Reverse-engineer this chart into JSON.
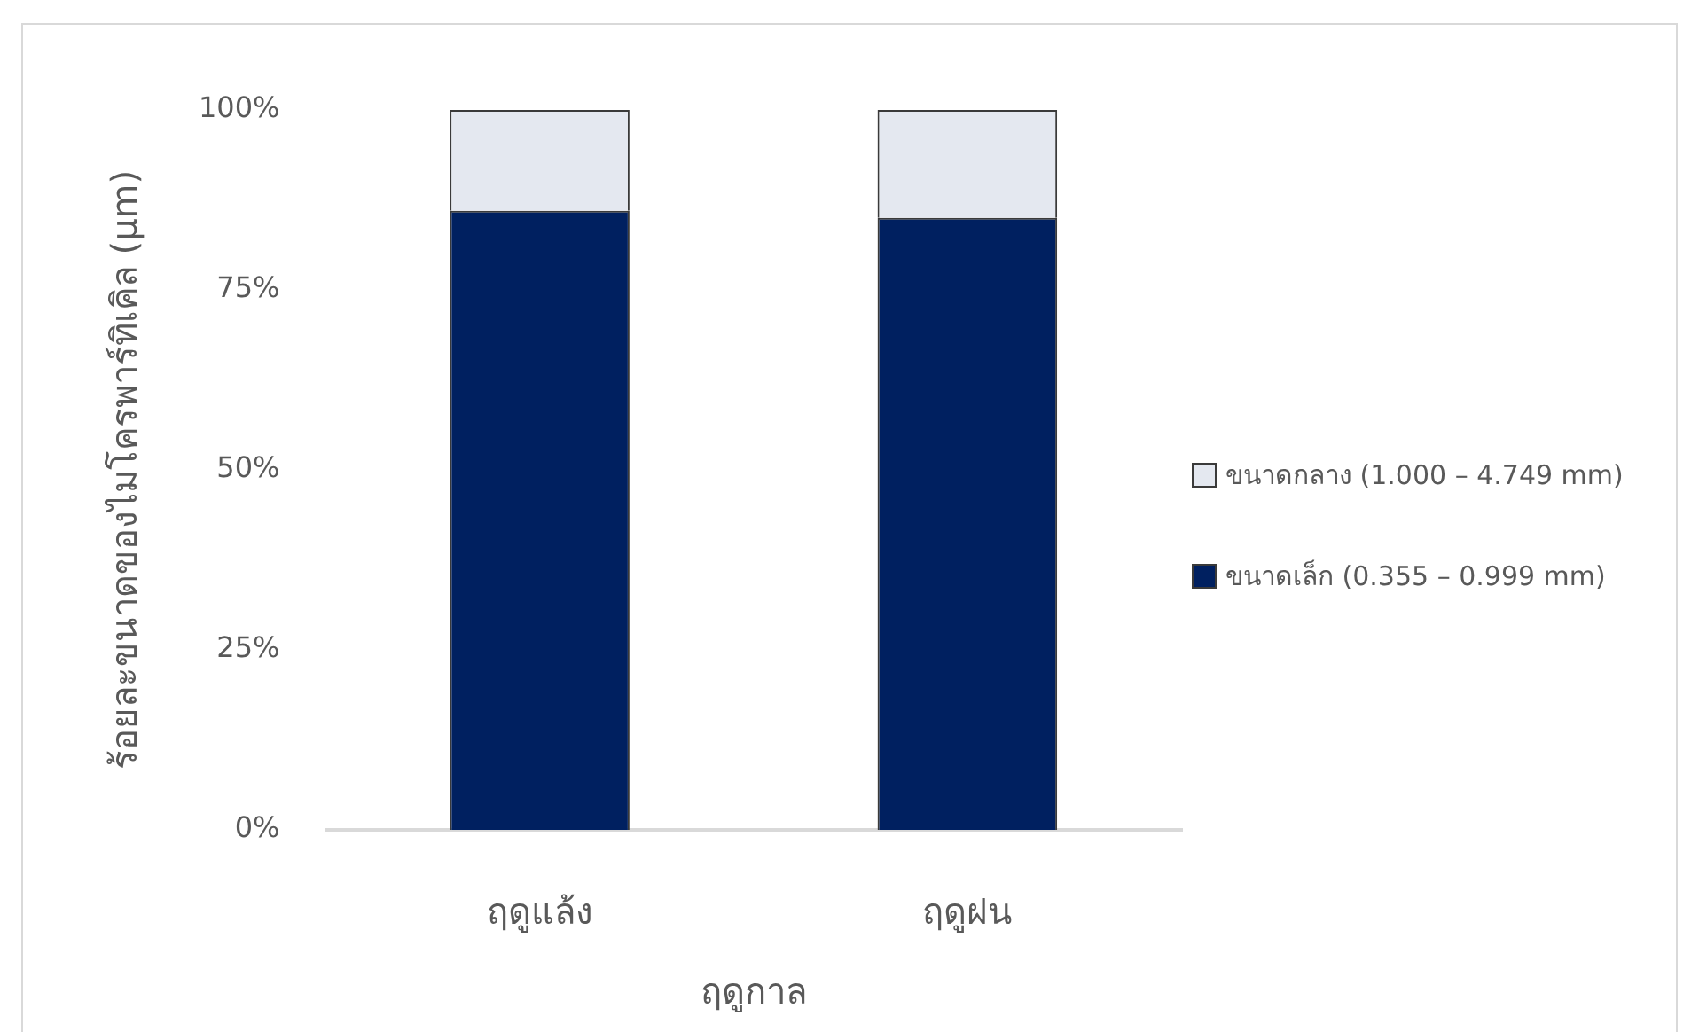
{
  "chart_data": {
    "type": "bar",
    "stacked": true,
    "xlabel": "ฤดูกาล",
    "ylabel": "ร้อยละขนาดของไมโครพาร์ทิเคิล (μm)",
    "categories": [
      "ฤดูแล้ง",
      "ฤดูฝน"
    ],
    "series": [
      {
        "name": "ขนาดเล็ก (0.355 – 0.999 mm)",
        "color": "#002060",
        "values": [
          86,
          85
        ]
      },
      {
        "name": "ขนาดกลาง (1.000 – 4.749 mm)",
        "color": "#e4e8f0",
        "values": [
          14,
          15
        ]
      }
    ],
    "ylim": [
      0,
      100
    ],
    "yticks": [
      {
        "value": 0,
        "label": "0%"
      },
      {
        "value": 25,
        "label": "25%"
      },
      {
        "value": 50,
        "label": "50%"
      },
      {
        "value": 75,
        "label": "75%"
      },
      {
        "value": 100,
        "label": "100%"
      }
    ],
    "grid": false,
    "legend": "right"
  }
}
